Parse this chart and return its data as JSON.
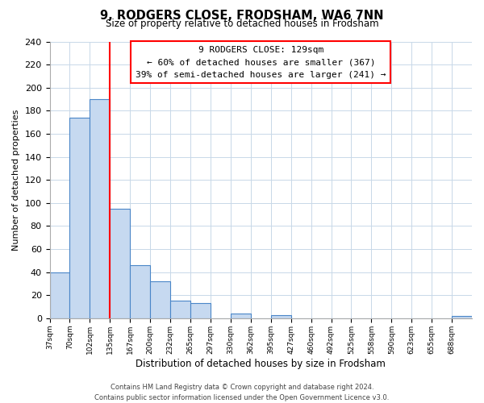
{
  "title": "9, RODGERS CLOSE, FRODSHAM, WA6 7NN",
  "subtitle": "Size of property relative to detached houses in Frodsham",
  "xlabel": "Distribution of detached houses by size in Frodsham",
  "ylabel": "Number of detached properties",
  "bin_labels": [
    "37sqm",
    "70sqm",
    "102sqm",
    "135sqm",
    "167sqm",
    "200sqm",
    "232sqm",
    "265sqm",
    "297sqm",
    "330sqm",
    "362sqm",
    "395sqm",
    "427sqm",
    "460sqm",
    "492sqm",
    "525sqm",
    "558sqm",
    "590sqm",
    "623sqm",
    "655sqm",
    "688sqm"
  ],
  "bar_values": [
    40,
    174,
    190,
    95,
    46,
    32,
    15,
    13,
    0,
    4,
    0,
    3,
    0,
    0,
    0,
    0,
    0,
    0,
    0,
    0,
    2
  ],
  "bar_color": "#c6d9f0",
  "bar_edge_color": "#4a86c8",
  "vline_x_label": "135sqm",
  "vline_color": "red",
  "annotation_title": "9 RODGERS CLOSE: 129sqm",
  "annotation_line1": "← 60% of detached houses are smaller (367)",
  "annotation_line2": "39% of semi-detached houses are larger (241) →",
  "ylim": [
    0,
    240
  ],
  "yticks": [
    0,
    20,
    40,
    60,
    80,
    100,
    120,
    140,
    160,
    180,
    200,
    220,
    240
  ],
  "footer_line1": "Contains HM Land Registry data © Crown copyright and database right 2024.",
  "footer_line2": "Contains public sector information licensed under the Open Government Licence v3.0.",
  "bg_color": "#ffffff",
  "grid_color": "#c8d8e8"
}
